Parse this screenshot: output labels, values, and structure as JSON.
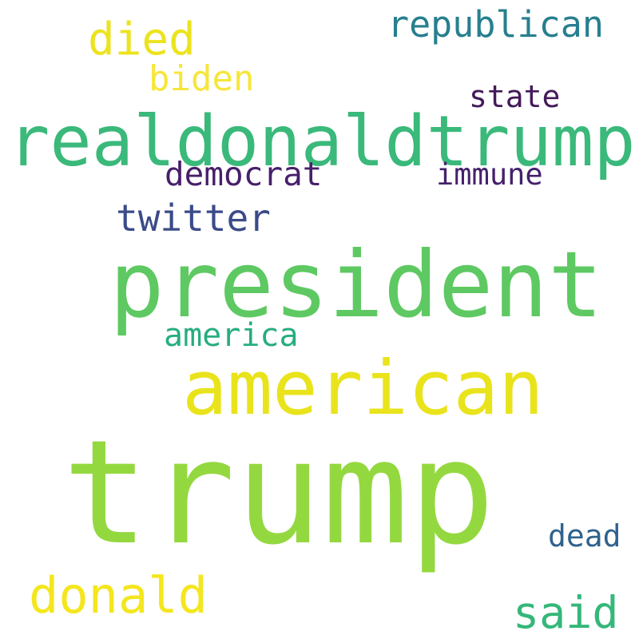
{
  "words": [
    {
      "text": "trump",
      "color": "#94d840"
    },
    {
      "text": "realdonaldtrump",
      "color": "#3ab97a"
    },
    {
      "text": "president",
      "color": "#5ec962"
    },
    {
      "text": "american",
      "color": "#e9e31c"
    },
    {
      "text": "donald",
      "color": "#f4e61e"
    },
    {
      "text": "died",
      "color": "#ece31f"
    },
    {
      "text": "biden",
      "color": "#f6e63a"
    },
    {
      "text": "republican",
      "color": "#277f8e"
    },
    {
      "text": "twitter",
      "color": "#3b4b89"
    },
    {
      "text": "democrat",
      "color": "#471f6a"
    },
    {
      "text": "state",
      "color": "#441a5a"
    },
    {
      "text": "immune",
      "color": "#45216c"
    },
    {
      "text": "america",
      "color": "#27ad81"
    },
    {
      "text": "said",
      "color": "#35b77a"
    },
    {
      "text": "dead",
      "color": "#30628d"
    }
  ]
}
